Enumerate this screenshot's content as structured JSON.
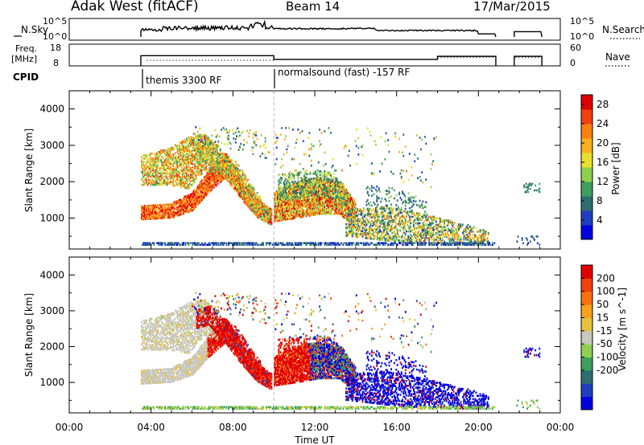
{
  "header": {
    "radar": "Adak West (fitACF)",
    "beam": "Beam 14",
    "date": "17/Mar/2015"
  },
  "summary_panels": {
    "nsky": {
      "label": "N.Sky",
      "left_ticks": [
        "10^5",
        "10^0"
      ],
      "right_ticks": [
        "10^5",
        "10^0"
      ],
      "right_label": "N.Search"
    },
    "freq": {
      "label_line1": "Freq.",
      "label_line2": "[MHz]",
      "left_ticks": [
        "18",
        "8"
      ],
      "right_ticks": [
        "60",
        "0"
      ],
      "right_label": "Nave"
    },
    "cpid": {
      "label": "CPID",
      "segments": [
        {
          "name": "themis 3300 RF",
          "start_hour": 3.5,
          "end_hour": 10.0
        },
        {
          "name": "normalsound (fast) -157 RF",
          "start_hour": 10.0,
          "end_hour": 23.0
        }
      ]
    }
  },
  "chart_data": [
    {
      "type": "heatmap",
      "name": "power",
      "ylabel": "Slant Range [km]",
      "xlim": [
        0,
        24
      ],
      "ylim": [
        150,
        4500
      ],
      "yticks": [
        1000,
        2000,
        3000,
        4000
      ],
      "colorbar": {
        "label": "Power [dB]",
        "ticks": [
          "28",
          "24",
          "20",
          "16",
          "12",
          "8",
          "4"
        ],
        "range": [
          0,
          30
        ],
        "colors": [
          "#0000e0",
          "#1f3fc0",
          "#2f6e70",
          "#3f9f60",
          "#8fcf4f",
          "#e8e030",
          "#f8b020",
          "#f88010",
          "#f04010",
          "#e00000"
        ]
      }
    },
    {
      "type": "heatmap",
      "name": "velocity",
      "ylabel": "Slant Range [km]",
      "xlabel": "Time UT",
      "xlim": [
        0,
        24
      ],
      "ylim": [
        150,
        4500
      ],
      "yticks": [
        1000,
        2000,
        3000,
        4000
      ],
      "xticks": [
        "00:00",
        "04:00",
        "08:00",
        "12:00",
        "16:00",
        "20:00",
        "00:00"
      ],
      "colorbar": {
        "label": "Velocity [m s^-1]",
        "ticks": [
          "200",
          "100",
          "50",
          "15",
          "-15",
          "-50",
          "-100",
          "-200"
        ],
        "colors": [
          "#0000e0",
          "#1f3fc0",
          "#2f6e70",
          "#3f9f60",
          "#8fcf4f",
          "#c8c8c0",
          "#e8c040",
          "#f8a020",
          "#f87010",
          "#f04010",
          "#e00000"
        ]
      }
    }
  ]
}
